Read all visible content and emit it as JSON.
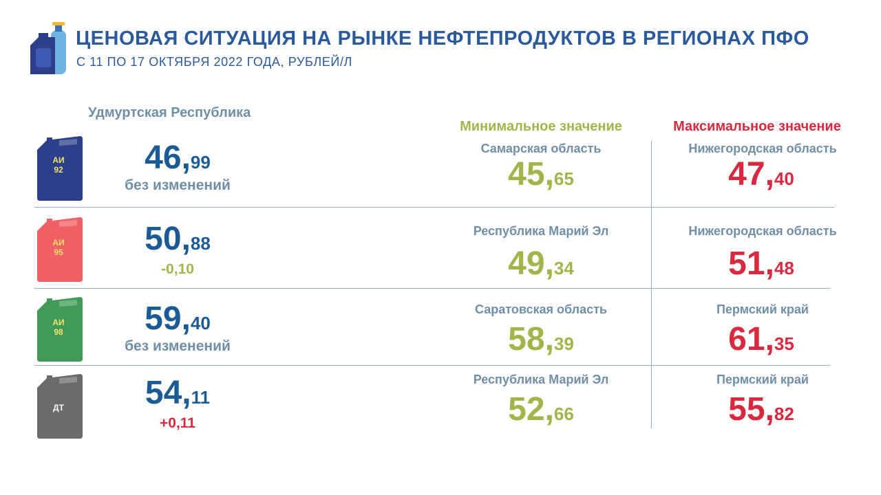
{
  "header": {
    "title": "ЦЕНОВАЯ СИТУАЦИЯ НА РЫНКЕ НЕФТЕПРОДУКТОВ В РЕГИОНАХ ПФО",
    "subtitle": "С 11 ПО 17 ОКТЯБРЯ 2022 ГОДА, РУБЛЕЙ/Л"
  },
  "region": "Удмуртская Республика",
  "columns": {
    "min_label": "Минимальное значение",
    "max_label": "Максимальное значение"
  },
  "colors": {
    "title": "#2a5a9c",
    "price": "#1a5b96",
    "min": "#a4b44a",
    "max": "#d8293e",
    "region_text": "#6f8fa8"
  },
  "fuels": [
    {
      "can_label_line1": "АИ",
      "can_label_line2": "92",
      "can_color": "#2d3f8a",
      "can_icon": "jerrycan-icon",
      "price_int": "46,",
      "price_frac": "99",
      "change": "без изменений",
      "change_color": "#6f8fa8",
      "min_region": "Самарская область",
      "min_int": "45,",
      "min_frac": "65",
      "max_region": "Нижегородская область",
      "max_int": "47,",
      "max_frac": "40"
    },
    {
      "can_label_line1": "АИ",
      "can_label_line2": "95",
      "can_color": "#ef5f63",
      "can_icon": "jerrycan-icon",
      "price_int": "50,",
      "price_frac": "88",
      "change": "-0,10",
      "change_color": "#a4b44a",
      "min_region": "Республика Марий Эл",
      "min_int": "49,",
      "min_frac": "34",
      "max_region": "Нижегородская область",
      "max_int": "51,",
      "max_frac": "48"
    },
    {
      "can_label_line1": "АИ",
      "can_label_line2": "98",
      "can_color": "#3f9a55",
      "can_icon": "jerrycan-icon",
      "price_int": "59,",
      "price_frac": "40",
      "change": "без изменений",
      "change_color": "#6f8fa8",
      "min_region": "Саратовская область",
      "min_int": "58,",
      "min_frac": "39",
      "max_region": "Пермский край",
      "max_int": "61,",
      "max_frac": "35"
    },
    {
      "can_label_line1": "ДТ",
      "can_label_line2": "",
      "can_color": "#6b6b6b",
      "can_icon": "jerrycan-icon",
      "price_int": "54,",
      "price_frac": "11",
      "change": "+0,11",
      "change_color": "#d8293e",
      "min_region": "Республика Марий Эл",
      "min_int": "52,",
      "min_frac": "66",
      "max_region": "Пермский край",
      "max_int": "55,",
      "max_frac": "82"
    }
  ]
}
